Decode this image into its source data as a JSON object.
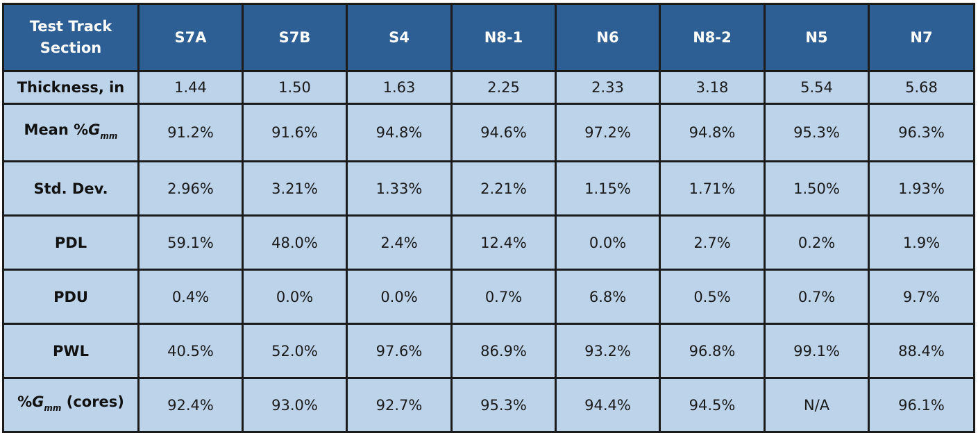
{
  "table": {
    "header_label": "Test Track Section",
    "columns": [
      "S7A",
      "S7B",
      "S4",
      "N8-1",
      "N6",
      "N8-2",
      "N5",
      "N7"
    ],
    "rows": [
      {
        "label": "Thickness, in",
        "values": [
          "1.44",
          "1.50",
          "1.63",
          "2.25",
          "2.33",
          "3.18",
          "5.54",
          "5.68"
        ]
      },
      {
        "label_prefix": "Mean %",
        "label_symbol": "G",
        "label_subscript": "mm",
        "label_suffix": "",
        "values": [
          "91.2%",
          "91.6%",
          "94.8%",
          "94.6%",
          "97.2%",
          "94.8%",
          "95.3%",
          "96.3%"
        ]
      },
      {
        "label": "Std. Dev.",
        "values": [
          "2.96%",
          "3.21%",
          "1.33%",
          "2.21%",
          "1.15%",
          "1.71%",
          "1.50%",
          "1.93%"
        ]
      },
      {
        "label": "PDL",
        "values": [
          "59.1%",
          "48.0%",
          "2.4%",
          "12.4%",
          "0.0%",
          "2.7%",
          "0.2%",
          "1.9%"
        ]
      },
      {
        "label": "PDU",
        "values": [
          "0.4%",
          "0.0%",
          "0.0%",
          "0.7%",
          "6.8%",
          "0.5%",
          "0.7%",
          "9.7%"
        ]
      },
      {
        "label": "PWL",
        "values": [
          "40.5%",
          "52.0%",
          "97.6%",
          "86.9%",
          "93.2%",
          "96.8%",
          "99.1%",
          "88.4%"
        ]
      },
      {
        "label_prefix": "%",
        "label_symbol": "G",
        "label_subscript": "mm",
        "label_suffix": " (cores)",
        "values": [
          "92.4%",
          "93.0%",
          "92.7%",
          "95.3%",
          "94.4%",
          "94.5%",
          "N/A",
          "96.1%"
        ]
      }
    ]
  },
  "colors": {
    "header_bg": "#2e5f94",
    "cell_bg": "#bcd3ea",
    "border": "#1b1b1b"
  }
}
